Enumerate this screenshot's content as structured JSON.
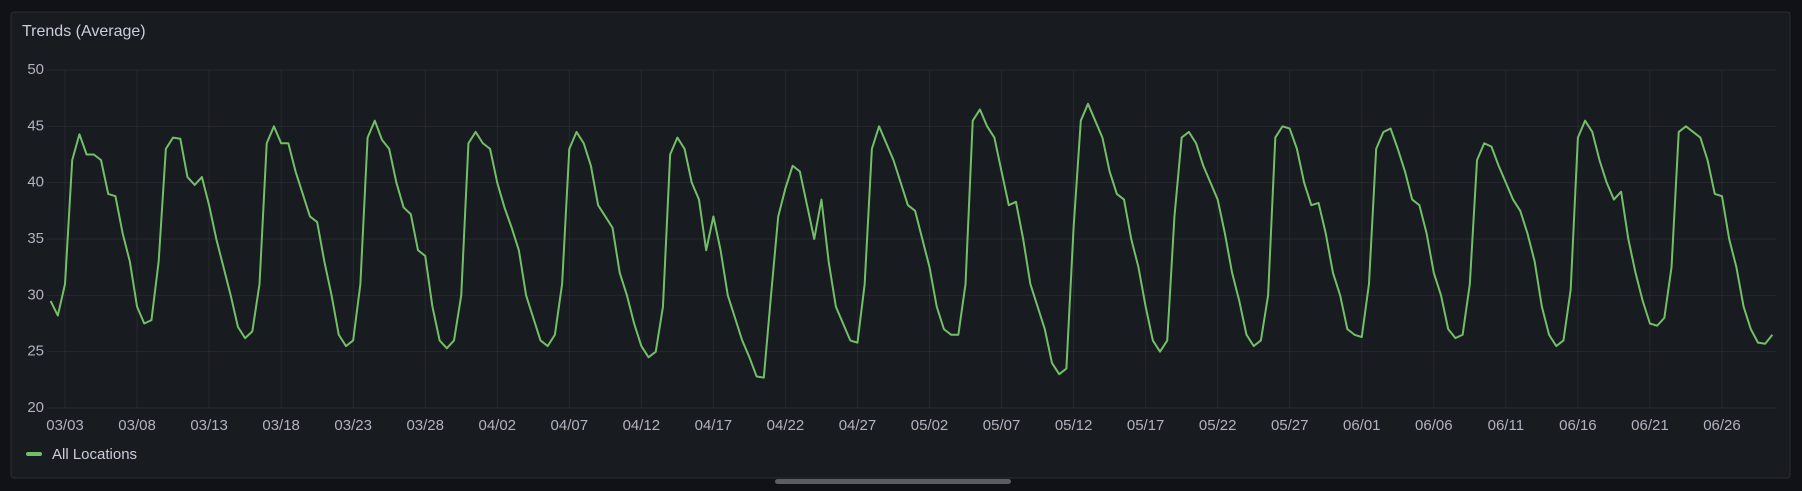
{
  "chart_data": {
    "type": "line",
    "title": "Trends (Average)",
    "categories": [
      null,
      null,
      "03/03",
      null,
      null,
      null,
      null,
      null,
      null,
      null,
      null,
      null,
      "03/08",
      null,
      null,
      null,
      null,
      null,
      null,
      null,
      null,
      null,
      "03/13",
      null,
      null,
      null,
      null,
      null,
      null,
      null,
      null,
      null,
      "03/18",
      null,
      null,
      null,
      null,
      null,
      null,
      null,
      null,
      null,
      "03/23",
      null,
      null,
      null,
      null,
      null,
      null,
      null,
      null,
      null,
      "03/28",
      null,
      null,
      null,
      null,
      null,
      null,
      null,
      null,
      null,
      "04/02",
      null,
      null,
      null,
      null,
      null,
      null,
      null,
      null,
      null,
      "04/07",
      null,
      null,
      null,
      null,
      null,
      null,
      null,
      null,
      null,
      "04/12",
      null,
      null,
      null,
      null,
      null,
      null,
      null,
      null,
      null,
      "04/17",
      null,
      null,
      null,
      null,
      null,
      null,
      null,
      null,
      null,
      "04/22",
      null,
      null,
      null,
      null,
      null,
      null,
      null,
      null,
      null,
      "04/27",
      null,
      null,
      null,
      null,
      null,
      null,
      null,
      null,
      null,
      "05/02",
      null,
      null,
      null,
      null,
      null,
      null,
      null,
      null,
      null,
      "05/07",
      null,
      null,
      null,
      null,
      null,
      null,
      null,
      null,
      null,
      "05/12",
      null,
      null,
      null,
      null,
      null,
      null,
      null,
      null,
      null,
      "05/17",
      null,
      null,
      null,
      null,
      null,
      null,
      null,
      null,
      null,
      "05/22",
      null,
      null,
      null,
      null,
      null,
      null,
      null,
      null,
      null,
      "05/27",
      null,
      null,
      null,
      null,
      null,
      null,
      null,
      null,
      null,
      "06/01",
      null,
      null,
      null,
      null,
      null,
      null,
      null,
      null,
      null,
      "06/06",
      null,
      null,
      null,
      null,
      null,
      null,
      null,
      null,
      null,
      "06/11",
      null,
      null,
      null,
      null,
      null,
      null,
      null,
      null,
      null,
      "06/16",
      null,
      null,
      null,
      null,
      null,
      null,
      null,
      null,
      null,
      "06/21",
      null,
      null,
      null,
      null,
      null,
      null,
      null,
      null,
      null,
      "06/26",
      null,
      null,
      null,
      null,
      null,
      null,
      null
    ],
    "series": [
      {
        "name": "All Locations",
        "color": "#73bf69",
        "values": [
          29.5,
          28.2,
          31,
          42,
          44.3,
          42.5,
          42.5,
          42,
          39,
          38.8,
          35.5,
          33,
          29,
          27.5,
          27.8,
          33,
          43,
          44,
          43.9,
          40.5,
          39.8,
          40.5,
          38,
          35,
          32.5,
          30,
          27.2,
          26.2,
          26.8,
          31,
          43.5,
          45,
          43.5,
          43.5,
          41,
          39,
          37,
          36.5,
          33,
          30,
          26.5,
          25.5,
          26,
          31,
          44,
          45.5,
          43.8,
          43,
          40,
          37.8,
          37.2,
          34,
          33.5,
          29,
          26,
          25.3,
          26,
          30,
          43.5,
          44.5,
          43.5,
          43,
          40,
          37.8,
          36,
          34,
          30,
          28,
          26,
          25.5,
          26.5,
          31,
          43,
          44.5,
          43.5,
          41.5,
          38,
          37,
          36,
          32,
          30,
          27.5,
          25.5,
          24.5,
          25,
          29,
          42.5,
          44,
          43,
          40,
          38.5,
          34,
          37,
          34,
          30,
          28,
          26,
          24.5,
          22.8,
          22.7,
          30,
          37,
          39.5,
          41.5,
          41,
          38,
          35,
          38.5,
          33,
          29,
          27.5,
          26,
          25.8,
          31,
          43,
          45,
          43.5,
          42,
          40,
          38,
          37.5,
          35,
          32.5,
          29,
          27,
          26.5,
          26.5,
          31,
          45.5,
          46.5,
          45,
          44,
          41,
          38,
          38.3,
          35,
          31,
          29,
          27,
          24,
          23,
          23.5,
          36,
          45.5,
          47,
          45.5,
          44,
          41,
          39,
          38.5,
          35,
          32.5,
          29,
          26,
          25,
          26,
          37,
          44,
          44.5,
          43.5,
          41.5,
          40,
          38.5,
          35.5,
          32,
          29.5,
          26.5,
          25.5,
          26,
          30,
          44,
          45,
          44.8,
          43,
          40,
          38,
          38.2,
          35.5,
          32,
          30,
          27,
          26.5,
          26.3,
          31,
          43,
          44.5,
          44.8,
          43,
          41,
          38.5,
          38,
          35.5,
          32,
          30,
          27,
          26.2,
          26.5,
          31,
          42,
          43.5,
          43.2,
          41.5,
          40,
          38.5,
          37.5,
          35.5,
          33,
          29,
          26.5,
          25.5,
          26,
          30.5,
          44,
          45.5,
          44.5,
          42,
          40,
          38.5,
          39.2,
          35,
          32,
          29.5,
          27.5,
          27.3,
          28,
          32.5,
          44.5,
          45,
          44.5,
          44,
          42,
          39,
          38.8,
          35,
          32.5,
          29,
          27,
          25.8,
          25.7,
          26.5
        ]
      }
    ],
    "ylim": [
      20,
      50
    ],
    "yticks": [
      20,
      25,
      30,
      35,
      40,
      45,
      50
    ],
    "grid": true
  }
}
